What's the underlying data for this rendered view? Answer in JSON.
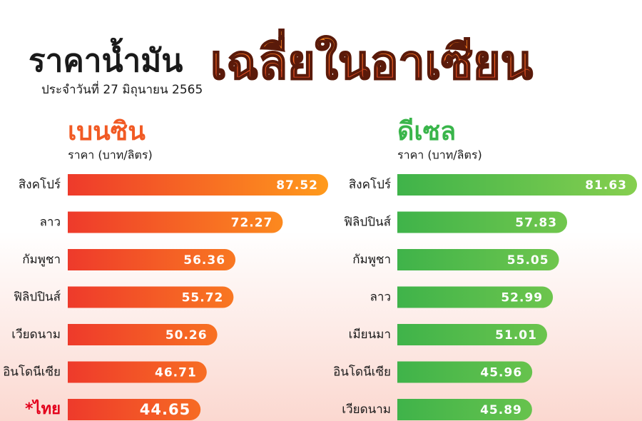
{
  "title": "ราคาน้ำมัน",
  "title_emphasis": "เฉลี่ยในอาเซียน",
  "subtitle": "ประจำวันที่ 27 มิถุนายน 2565",
  "chart_data": [
    {
      "type": "bar",
      "title": "เบนซิน",
      "subtitle": "ราคา (บาท/ลิตร)",
      "categories": [
        "สิงคโปร์",
        "ลาว",
        "กัมพูชา",
        "ฟิลิปปินส์",
        "เวียดนาม",
        "อินโดนีเซีย",
        "*ไทย"
      ],
      "values": [
        87.52,
        72.27,
        56.36,
        55.72,
        50.26,
        46.71,
        44.65
      ],
      "colors": [
        "#ee3a2b",
        "#ff9a1c"
      ],
      "title_color": "#f15a24",
      "highlight_index": 6,
      "highlight_color": "#e3001b"
    },
    {
      "type": "bar",
      "title": "ดีเซล",
      "subtitle": "ราคา (บาท/ลิตร)",
      "categories": [
        "สิงคโปร์",
        "ฟิลิปปินส์",
        "กัมพูชา",
        "ลาว",
        "เมียนมา",
        "อินโดนีเซีย",
        "เวียดนาม"
      ],
      "values": [
        81.63,
        57.83,
        55.05,
        52.99,
        51.01,
        45.96,
        45.89
      ],
      "colors": [
        "#3fb34a",
        "#86cf4f"
      ],
      "title_color": "#39b54a"
    }
  ]
}
